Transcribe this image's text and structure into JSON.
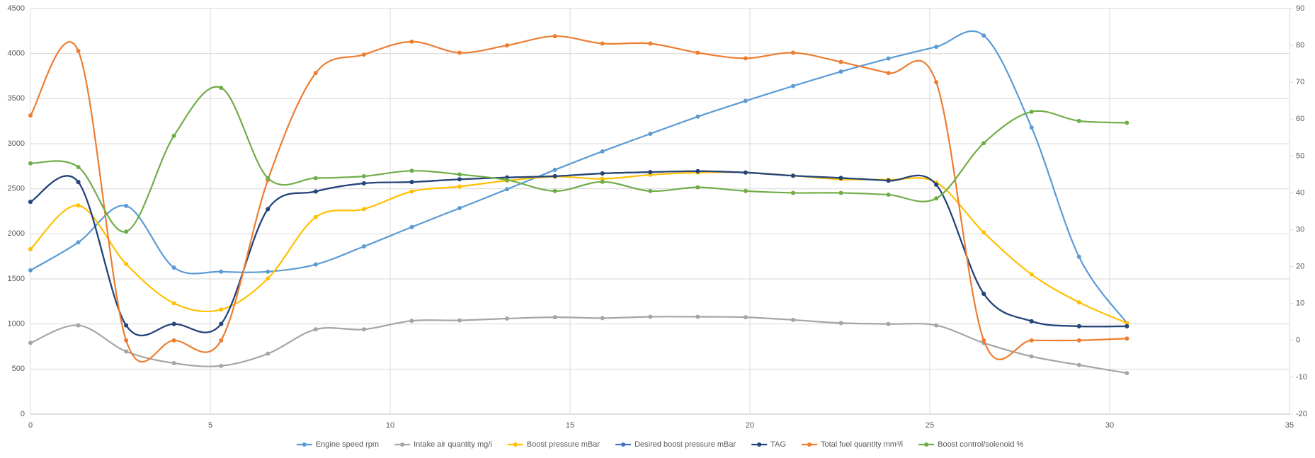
{
  "chart_data": {
    "type": "line",
    "x": [
      0,
      1.33,
      2.66,
      3.99,
      5.3,
      6.6,
      7.93,
      9.27,
      10.6,
      11.93,
      13.25,
      14.58,
      15.9,
      17.23,
      18.55,
      19.88,
      21.2,
      22.53,
      23.85,
      25.18,
      26.5,
      27.83,
      29.15,
      30.48
    ],
    "series": [
      {
        "name": "Engine speed rpm",
        "color": "#5b9bd5",
        "values": [
          1595,
          1905,
          2310,
          1625,
          1580,
          1580,
          1660,
          1860,
          2075,
          2285,
          2495,
          2710,
          2915,
          3110,
          3300,
          3475,
          3640,
          3800,
          3945,
          4075,
          4200,
          3180,
          1745,
          1010
        ]
      },
      {
        "name": "Intake air quantity mg/i",
        "color": "#a5a5a5",
        "values": [
          790,
          985,
          695,
          565,
          535,
          670,
          940,
          940,
          1035,
          1040,
          1060,
          1075,
          1065,
          1080,
          1080,
          1075,
          1045,
          1010,
          1000,
          985,
          790,
          640,
          545,
          455
        ]
      },
      {
        "name": "Boost pressure mBar",
        "color": "#ffc000",
        "values": [
          1830,
          2315,
          1665,
          1230,
          1160,
          1505,
          2185,
          2275,
          2470,
          2525,
          2590,
          2635,
          2610,
          2655,
          2680,
          2680,
          2645,
          2605,
          2600,
          2570,
          2015,
          1550,
          1240,
          1010
        ]
      },
      {
        "name": "Desired boost pressure mBar",
        "color": "#4472c4",
        "values": [
          2355,
          2575,
          985,
          1000,
          1000,
          2275,
          2470,
          2560,
          2575,
          2605,
          2625,
          2640,
          2670,
          2685,
          2695,
          2680,
          2645,
          2620,
          2590,
          2545,
          1335,
          1030,
          975,
          975
        ]
      },
      {
        "name": "TAG",
        "color": "#264478",
        "values": [
          2355,
          2575,
          985,
          1000,
          1000,
          2275,
          2470,
          2560,
          2575,
          2605,
          2625,
          2640,
          2670,
          2685,
          2695,
          2680,
          2645,
          2620,
          2590,
          2545,
          1335,
          1030,
          975,
          975
        ]
      },
      {
        "name": "Total fuel quantity mm³/i",
        "color": "#ed7d31",
        "axis": "y2",
        "values": [
          61,
          78.5,
          0,
          0,
          0,
          43.5,
          72.5,
          77.5,
          81,
          78,
          80,
          82.5,
          80.5,
          80.5,
          78,
          76.5,
          78,
          75.5,
          72.5,
          70,
          0,
          0,
          0,
          0.5
        ]
      },
      {
        "name": "Boost control/solenoid %",
        "color": "#70ad47",
        "axis": "y2",
        "values": [
          48,
          47,
          29.5,
          55.5,
          68.5,
          44,
          44,
          44.5,
          46,
          45,
          43.5,
          40.5,
          43,
          40.5,
          41.5,
          40.5,
          40,
          40,
          39.5,
          38.5,
          53.5,
          62,
          59.5,
          59
        ]
      }
    ],
    "xlim": [
      0,
      35
    ],
    "xticks": [
      0,
      5,
      10,
      15,
      20,
      25,
      30,
      35
    ],
    "ylim": [
      0,
      4500
    ],
    "yticks": [
      0,
      500,
      1000,
      1500,
      2000,
      2500,
      3000,
      3500,
      4000,
      4500
    ],
    "y2lim": [
      -20,
      90
    ],
    "y2ticks": [
      -20,
      -10,
      0,
      10,
      20,
      30,
      40,
      50,
      60,
      70,
      80,
      90
    ],
    "grid": true,
    "smooth": true,
    "markers": true,
    "legend": "bottom"
  }
}
